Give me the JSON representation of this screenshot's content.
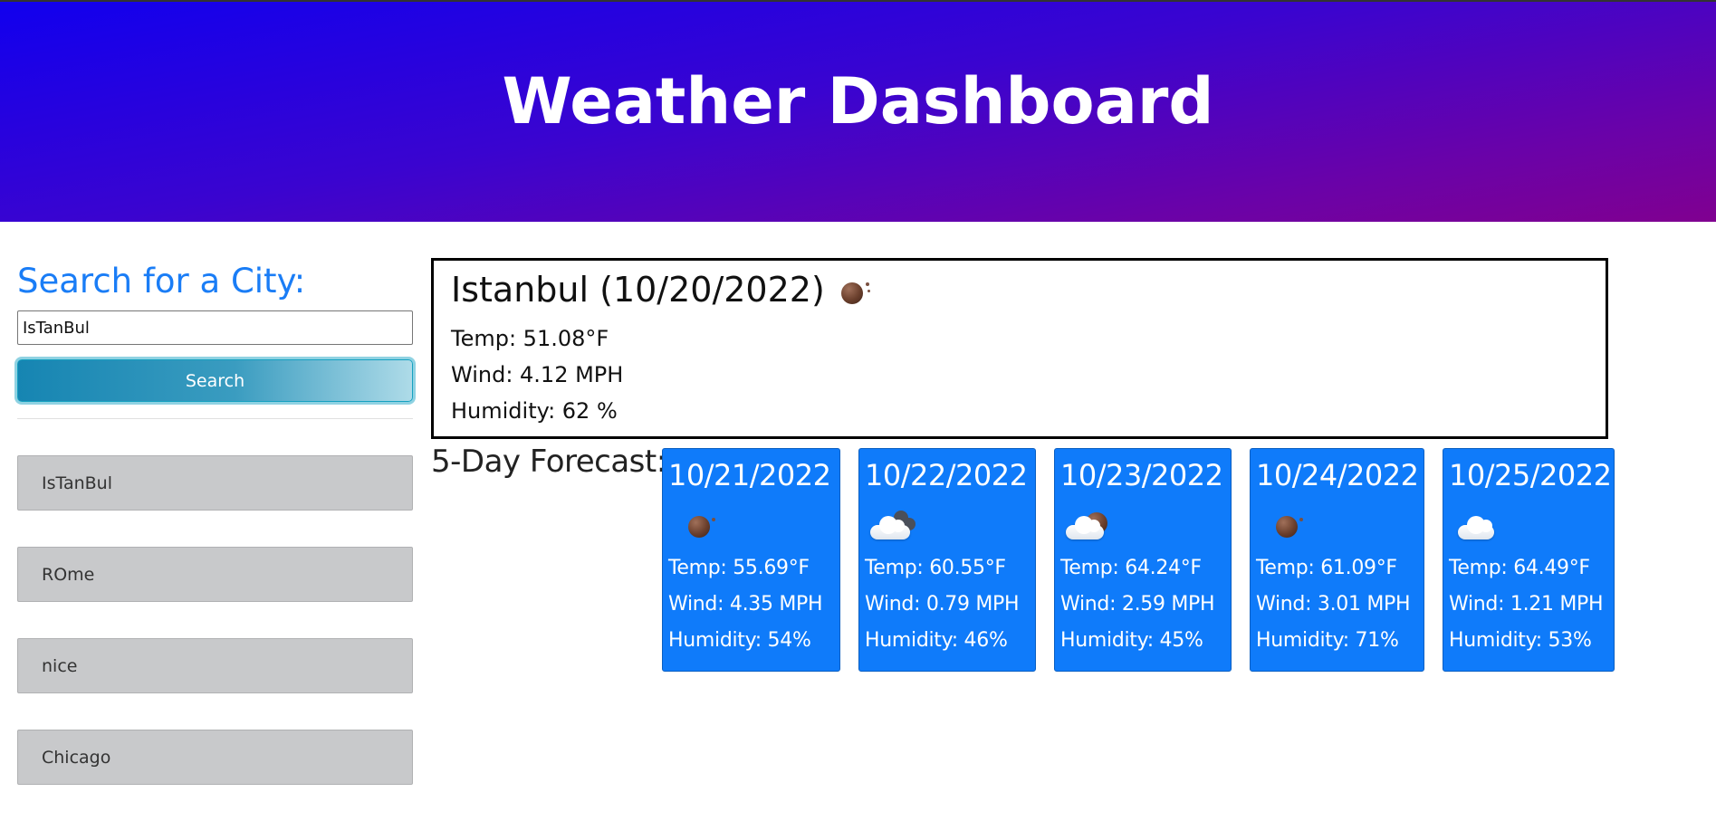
{
  "header": {
    "title": "Weather Dashboard"
  },
  "sidebar": {
    "heading": "Search for a City:",
    "search_input_value": "IsTanBul",
    "search_button_label": "Search",
    "history": [
      {
        "label": "IsTanBul"
      },
      {
        "label": "ROme"
      },
      {
        "label": "nice"
      },
      {
        "label": "Chicago"
      }
    ]
  },
  "current": {
    "title": "Istanbul (10/20/2022)",
    "icon": "night-clear-icon",
    "temp": "Temp: 51.08°F",
    "wind": "Wind: 4.12 MPH",
    "humidity": "Humidity: 62 %"
  },
  "forecast": {
    "label": "5-Day Forecast:",
    "days": [
      {
        "date": "10/21/2022",
        "icon": "night-clear-icon",
        "temp": "Temp: 55.69°F",
        "wind": "Wind: 4.35 MPH",
        "humidity": "Humidity: 54%"
      },
      {
        "date": "10/22/2022",
        "icon": "broken-clouds-icon",
        "temp": "Temp: 60.55°F",
        "wind": "Wind: 0.79 MPH",
        "humidity": "Humidity: 46%"
      },
      {
        "date": "10/23/2022",
        "icon": "night-partly-cloudy-icon",
        "temp": "Temp: 64.24°F",
        "wind": "Wind: 2.59 MPH",
        "humidity": "Humidity: 45%"
      },
      {
        "date": "10/24/2022",
        "icon": "night-clear-icon",
        "temp": "Temp: 61.09°F",
        "wind": "Wind: 3.01 MPH",
        "humidity": "Humidity: 71%"
      },
      {
        "date": "10/25/2022",
        "icon": "cloud-icon",
        "temp": "Temp: 64.49°F",
        "wind": "Wind: 1.21 MPH",
        "humidity": "Humidity: 53%"
      }
    ]
  },
  "colors": {
    "header_start": "#1100ee",
    "header_end": "#800090",
    "accent_blue": "#1a7df6",
    "card_blue": "#0f7bfa",
    "history_gray": "#c8c9cb"
  }
}
